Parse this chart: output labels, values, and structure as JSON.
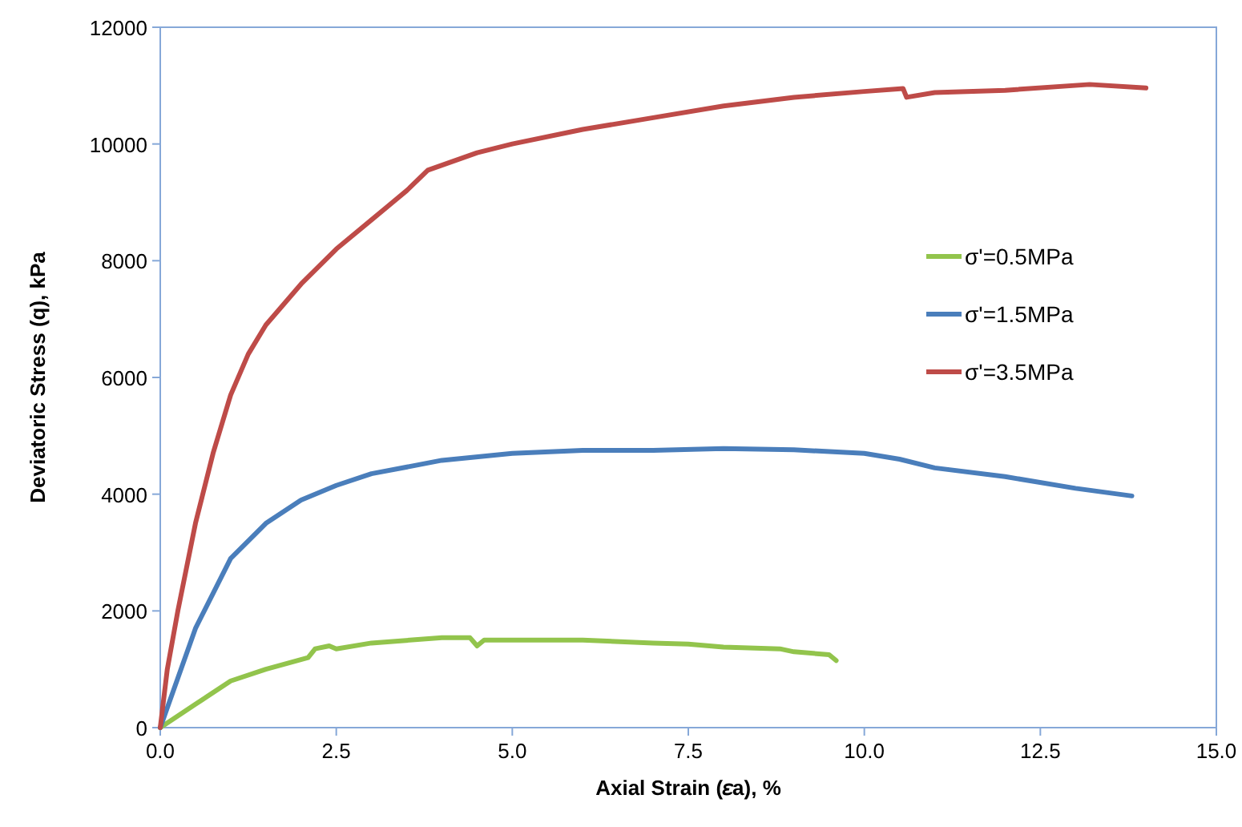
{
  "chart_data": {
    "type": "line",
    "xlabel": "Axial Strain (𝜀a), %",
    "ylabel": "Deviatoric Stress (q), kPa",
    "xlim": [
      0,
      15
    ],
    "ylim": [
      0,
      12000
    ],
    "xticks": [
      {
        "value": 0,
        "label": "0.0"
      },
      {
        "value": 2.5,
        "label": "2.5"
      },
      {
        "value": 5,
        "label": "5.0"
      },
      {
        "value": 7.5,
        "label": "7.5"
      },
      {
        "value": 10,
        "label": "10.0"
      },
      {
        "value": 12.5,
        "label": "12.5"
      },
      {
        "value": 15,
        "label": "15.0"
      }
    ],
    "yticks": [
      0,
      2000,
      4000,
      6000,
      8000,
      10000,
      12000
    ],
    "grid": false,
    "legend": "right",
    "marker": "none",
    "line_style": "solid",
    "series": [
      {
        "name": "σ'=0.5MPa",
        "color": "#92c44c",
        "x": [
          0,
          0.5,
          1,
          1.5,
          2.1,
          2.2,
          2.4,
          2.5,
          3,
          4,
          4.4,
          4.5,
          4.6,
          5,
          6,
          7,
          7.5,
          8,
          8.8,
          9,
          9.5,
          9.6
        ],
        "values": [
          0,
          400,
          800,
          1000,
          1200,
          1350,
          1400,
          1350,
          1450,
          1540,
          1540,
          1400,
          1500,
          1500,
          1500,
          1450,
          1430,
          1380,
          1350,
          1300,
          1250,
          1150
        ]
      },
      {
        "name": "σ'=1.5MPa",
        "color": "#4a7ebb",
        "x": [
          0,
          0.5,
          1,
          1.5,
          2,
          2.5,
          3,
          4,
          5,
          6,
          7,
          8,
          9,
          10,
          10.5,
          11,
          12,
          13,
          13.8
        ],
        "values": [
          0,
          1700,
          2900,
          3500,
          3900,
          4150,
          4350,
          4580,
          4700,
          4750,
          4750,
          4780,
          4760,
          4700,
          4600,
          4450,
          4300,
          4100,
          3970
        ]
      },
      {
        "name": "σ'=3.5MPa",
        "color": "#be4b48",
        "x": [
          0,
          0.1,
          0.25,
          0.5,
          0.75,
          1,
          1.25,
          1.5,
          2,
          2.5,
          3,
          3.5,
          3.8,
          4.5,
          5,
          6,
          7,
          8,
          9,
          10,
          10.55,
          10.6,
          11,
          12,
          13.2,
          14
        ],
        "values": [
          0,
          1000,
          2000,
          3500,
          4700,
          5700,
          6400,
          6900,
          7600,
          8200,
          8700,
          9200,
          9550,
          9850,
          10000,
          10250,
          10450,
          10650,
          10800,
          10900,
          10950,
          10800,
          10880,
          10920,
          11020,
          10960
        ]
      }
    ]
  }
}
